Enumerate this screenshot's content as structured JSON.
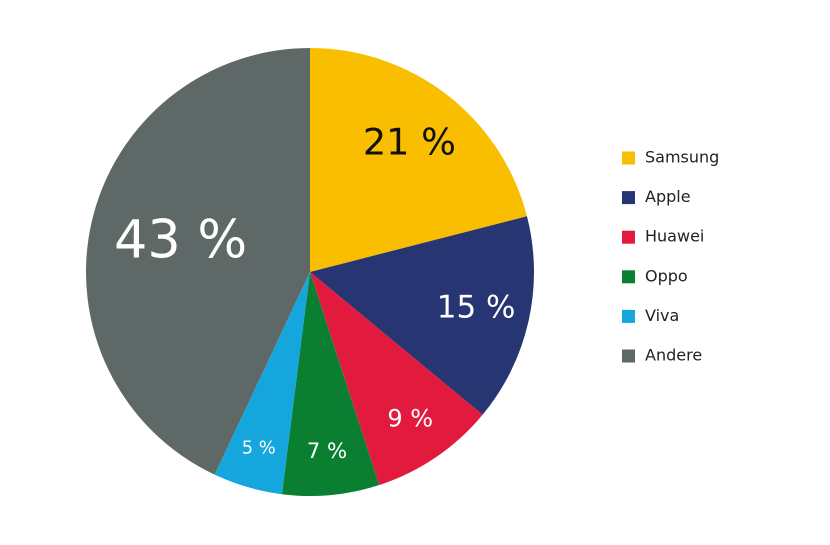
{
  "chart_data": {
    "type": "pie",
    "categories": [
      "Samsung",
      "Apple",
      "Huawei",
      "Oppo",
      "Viva",
      "Andere"
    ],
    "values": [
      21,
      15,
      9,
      7,
      5,
      43
    ],
    "value_labels": [
      "21 %",
      "15 %",
      "9 %",
      "7 %",
      "5 %",
      "43 %"
    ],
    "colors": [
      "#f9be00",
      "#283573",
      "#e21a3e",
      "#0a7f32",
      "#14a6dd",
      "#5e6867"
    ],
    "legend": "right"
  }
}
